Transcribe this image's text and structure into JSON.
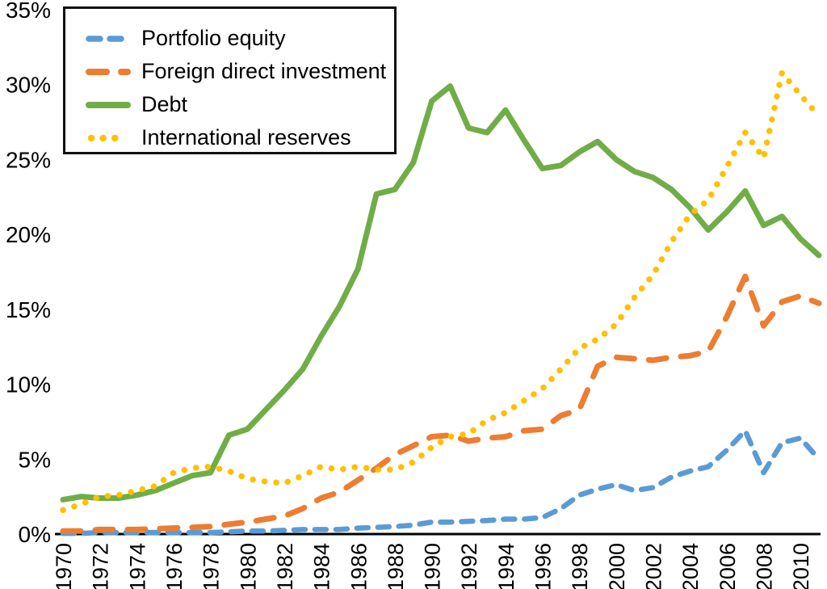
{
  "chart_data": {
    "type": "line",
    "title": "",
    "xlabel": "",
    "ylabel": "",
    "grid": false,
    "background_color": "#ffffff",
    "axis_color": "#000000",
    "text_color": "#000000",
    "legend_position": "top-left",
    "ylim": [
      0,
      35
    ],
    "xlim": [
      1970,
      2011
    ],
    "x": [
      1970,
      1971,
      1972,
      1973,
      1974,
      1975,
      1976,
      1977,
      1978,
      1979,
      1980,
      1981,
      1982,
      1983,
      1984,
      1985,
      1986,
      1987,
      1988,
      1989,
      1990,
      1991,
      1992,
      1993,
      1994,
      1995,
      1996,
      1997,
      1998,
      1999,
      2000,
      2001,
      2002,
      2003,
      2004,
      2005,
      2006,
      2007,
      2008,
      2009,
      2010,
      2011
    ],
    "y_ticks": {
      "values": [
        0,
        5,
        10,
        15,
        20,
        25,
        30,
        35
      ],
      "labels": [
        "0%",
        "5%",
        "10%",
        "15%",
        "20%",
        "25%",
        "30%",
        "35%"
      ]
    },
    "x_ticks": {
      "values": [
        1970,
        1972,
        1974,
        1976,
        1978,
        1980,
        1982,
        1984,
        1986,
        1988,
        1990,
        1992,
        1994,
        1996,
        1998,
        2000,
        2002,
        2004,
        2006,
        2008,
        2010
      ],
      "labels": [
        "1970",
        "1972",
        "1974",
        "1976",
        "1978",
        "1980",
        "1982",
        "1984",
        "1986",
        "1988",
        "1990",
        "1992",
        "1994",
        "1996",
        "1998",
        "2000",
        "2002",
        "2004",
        "2006",
        "2008",
        "2010"
      ]
    },
    "series": [
      {
        "name": "Portfolio equity",
        "color": "#5B9BD5",
        "style": "dashed",
        "values": [
          0.05,
          0.05,
          0.1,
          0.1,
          0.1,
          0.1,
          0.1,
          0.1,
          0.1,
          0.15,
          0.2,
          0.2,
          0.25,
          0.3,
          0.3,
          0.3,
          0.4,
          0.45,
          0.5,
          0.6,
          0.8,
          0.8,
          0.85,
          0.9,
          1.0,
          1.0,
          1.1,
          1.7,
          2.6,
          3.0,
          3.3,
          2.9,
          3.1,
          3.8,
          4.2,
          4.5,
          5.6,
          6.9,
          4.1,
          6.1,
          6.4,
          5.0
        ]
      },
      {
        "name": "Foreign direct investment",
        "color": "#ED7D31",
        "style": "long-dash",
        "values": [
          0.2,
          0.2,
          0.3,
          0.3,
          0.3,
          0.35,
          0.4,
          0.45,
          0.5,
          0.65,
          0.8,
          1.0,
          1.2,
          1.7,
          2.4,
          2.8,
          3.6,
          4.4,
          5.3,
          5.9,
          6.5,
          6.6,
          6.2,
          6.4,
          6.5,
          6.9,
          7.0,
          7.9,
          8.3,
          11.2,
          11.8,
          11.7,
          11.6,
          11.8,
          11.9,
          12.2,
          14.5,
          17.2,
          13.9,
          15.5,
          15.9,
          15.4
        ]
      },
      {
        "name": "Debt",
        "color": "#70AD47",
        "style": "solid",
        "values": [
          2.3,
          2.5,
          2.4,
          2.4,
          2.6,
          2.9,
          3.4,
          3.9,
          4.1,
          6.6,
          7.0,
          8.3,
          9.6,
          11.0,
          13.2,
          15.2,
          17.7,
          22.7,
          23.0,
          24.8,
          28.9,
          29.9,
          27.1,
          26.8,
          28.3,
          26.3,
          24.4,
          24.6,
          25.5,
          26.2,
          25.0,
          24.2,
          23.8,
          23.0,
          21.8,
          20.3,
          21.5,
          22.9,
          20.6,
          21.2,
          19.7,
          18.6
        ]
      },
      {
        "name": "International reserves",
        "color": "#FFC000",
        "style": "dotted",
        "values": [
          1.6,
          2.0,
          2.5,
          2.6,
          2.9,
          3.2,
          4.1,
          4.4,
          4.5,
          4.2,
          3.7,
          3.5,
          3.4,
          3.9,
          4.5,
          4.3,
          4.5,
          4.3,
          4.3,
          4.8,
          5.8,
          6.5,
          6.7,
          7.6,
          8.1,
          8.9,
          9.7,
          11.0,
          12.4,
          13.0,
          14.0,
          15.8,
          17.3,
          19.5,
          21.3,
          22.3,
          24.5,
          26.8,
          25.1,
          30.8,
          29.3,
          27.9
        ]
      }
    ]
  }
}
